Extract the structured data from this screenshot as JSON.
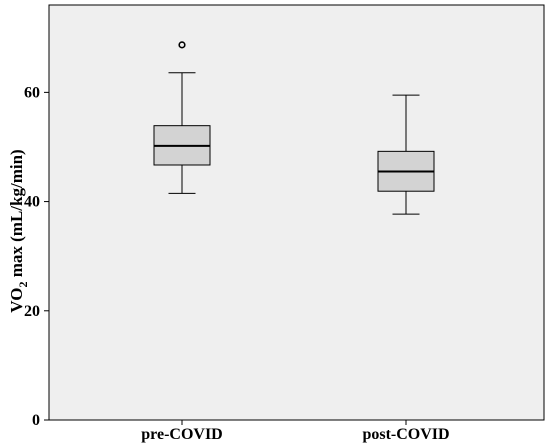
{
  "chart_data": {
    "type": "box",
    "ylabel_main": "VO",
    "ylabel_sub": "2",
    "ylabel_rest": " max (mL/kg/min)",
    "xlabel": "",
    "ylim": [
      0,
      76
    ],
    "yticks": [
      "0",
      "20",
      "40",
      "60"
    ],
    "grid": false,
    "categories": [
      "pre-COVID",
      "post-COVID"
    ],
    "boxes": [
      {
        "name": "pre-COVID",
        "min": 41.5,
        "q1": 46.7,
        "median": 50.2,
        "q3": 53.9,
        "max": 63.6,
        "outliers": [
          68.7
        ]
      },
      {
        "name": "post-COVID",
        "min": 37.7,
        "q1": 41.9,
        "median": 45.5,
        "q3": 49.2,
        "max": 59.5,
        "outliers": []
      }
    ],
    "colors": {
      "plot_bg": "#efefef",
      "box_fill": "#d3d3d3",
      "stroke": "#000000"
    }
  }
}
